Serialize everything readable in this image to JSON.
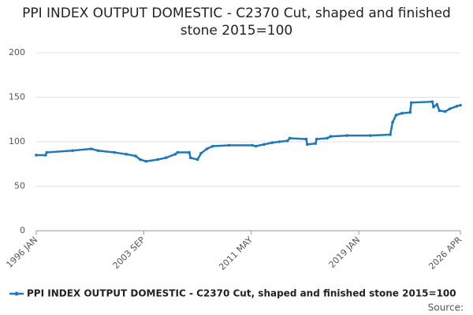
{
  "chart_data": {
    "type": "line",
    "title": "PPI INDEX OUTPUT DOMESTIC - C2370 Cut, shaped and finished stone 2015=100",
    "source": "Source:",
    "x": [
      "1996 JAN",
      "1996 SEP",
      "1996 OCT",
      "1998 AUG",
      "1999 DEC",
      "2000 JUN",
      "2001 AUG",
      "2002 JUN",
      "2003 FEB",
      "2003 JUN",
      "2003 NOV",
      "2004 SEP",
      "2005 APR",
      "2005 DEC",
      "2006 FEB",
      "2006 DEC",
      "2007 JAN",
      "2007 JUL",
      "2007 OCT",
      "2008 MAR",
      "2008 AUG",
      "2009 OCT",
      "2011 JUN",
      "2011 SEP",
      "2012 APR",
      "2012 NOV",
      "2013 MAY",
      "2013 DEC",
      "2014 FEB",
      "2015 APR",
      "2015 MAY",
      "2015 DEC",
      "2016 JAN",
      "2016 OCT",
      "2017 JAN",
      "2018 MAR",
      "2019 NOV",
      "2021 APR",
      "2021 JUN",
      "2021 SEP",
      "2022 FEB",
      "2022 SEP",
      "2022 OCT",
      "2024 APR",
      "2024 MAY",
      "2024 AUG",
      "2024 OCT",
      "2025 MAR",
      "2025 JUL",
      "2026 JAN",
      "2026 APR"
    ],
    "series": [
      {
        "name": "PPI INDEX OUTPUT DOMESTIC - C2370 Cut, shaped and finished stone 2015=100",
        "color": "#1f78b8",
        "values": [
          85,
          85,
          88,
          90,
          92,
          90,
          88,
          86,
          84,
          80,
          78,
          80,
          82,
          86,
          88,
          88,
          82,
          80,
          87,
          92,
          95,
          96,
          96,
          95,
          97,
          99,
          100,
          101,
          104,
          103,
          97,
          98,
          103,
          104,
          106,
          107,
          107,
          108,
          122,
          130,
          132,
          133,
          144,
          145,
          139,
          142,
          135,
          134,
          137,
          140,
          141
        ]
      }
    ],
    "xticks": [
      "1996 JAN",
      "2003 SEP",
      "2011 MAY",
      "2019 JAN",
      "2026 APR"
    ],
    "ylim": [
      0,
      200
    ],
    "yticks": [
      0,
      50,
      100,
      150,
      200
    ],
    "grid": true
  }
}
